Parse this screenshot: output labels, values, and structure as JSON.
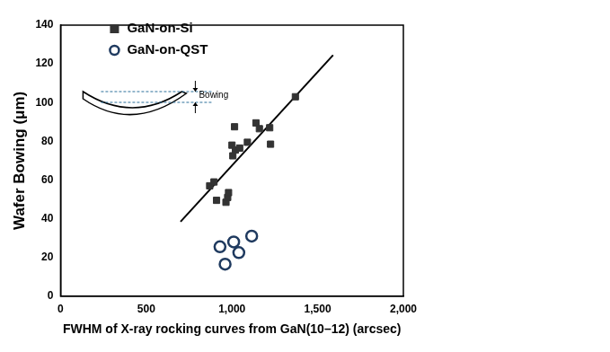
{
  "chart_data": {
    "type": "scatter",
    "x_label": "FWHM of X-ray rocking curves from GaN(10–12) (arcsec)",
    "y_label": "Wafer Bowing (μm)",
    "xlim": [
      0,
      2000
    ],
    "xticks": [
      0,
      500,
      1000,
      1500,
      2000
    ],
    "ylim": [
      0,
      140
    ],
    "yticks": [
      0,
      20,
      40,
      60,
      80,
      100,
      120,
      140
    ],
    "grid": false,
    "legend": "upper left",
    "series": [
      {
        "name": "GaN-on-Si",
        "color": "#333333",
        "marker": "square",
        "x": [
          870,
          895,
          910,
          965,
          975,
          980,
          1000,
          1015,
          1005,
          1020,
          1045,
          1090,
          1140,
          1160,
          1220,
          1225,
          1370
        ],
        "values": [
          57,
          59,
          49.5,
          48.5,
          51,
          53.5,
          78,
          87.5,
          72.5,
          75.5,
          76.5,
          79.5,
          89.5,
          86.5,
          87,
          78.5,
          103
        ]
      },
      {
        "name": "GaN-on-QST",
        "color": "#1f3a5f",
        "marker": "open_circle",
        "x": [
          930,
          960,
          1010,
          1040,
          1115
        ],
        "values": [
          25.5,
          16.5,
          28,
          22.5,
          31
        ]
      }
    ],
    "fit_line": {
      "type": "line",
      "color": "#000000",
      "line_style": "solid",
      "x": [
        700,
        1590
      ],
      "values": [
        38.5,
        124.5
      ]
    },
    "annotations": [
      {
        "text": "Bowing"
      }
    ]
  }
}
